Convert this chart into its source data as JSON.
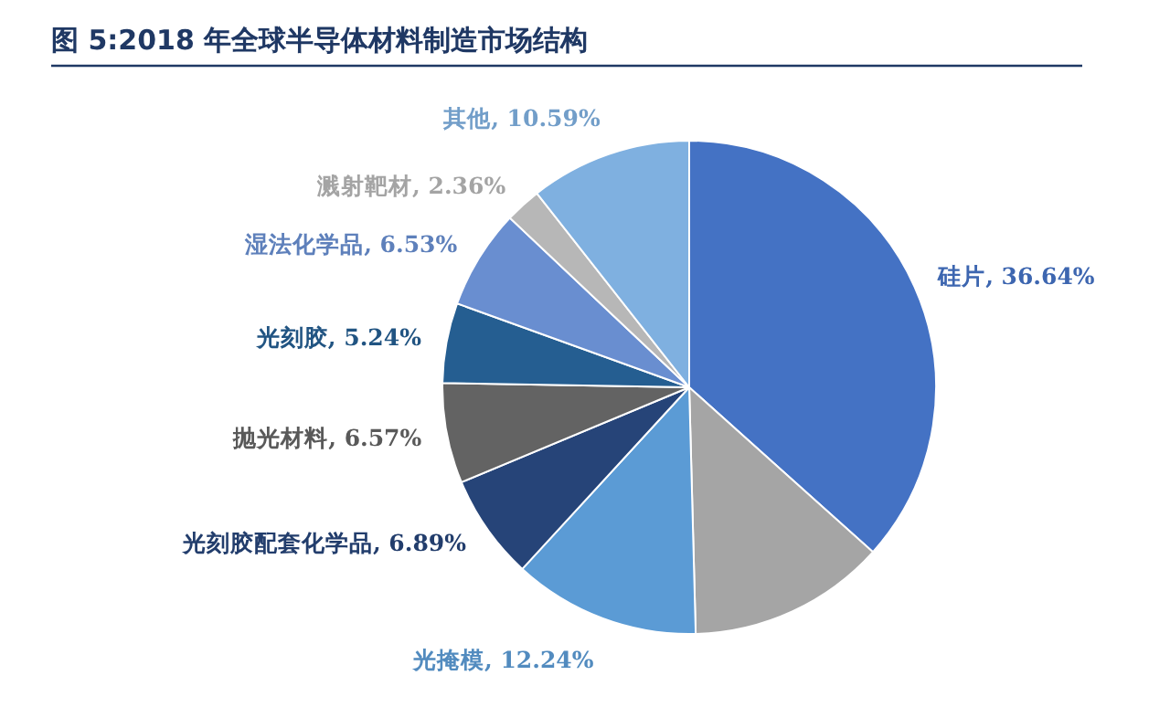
{
  "chart_data": {
    "type": "pie",
    "title": "图 5:2018 年全球半导体材料制造市场结构",
    "categories": [
      "硅片",
      null,
      "光掩模",
      "光刻胶配套化学品",
      "抛光材料",
      "光刻胶",
      "湿法化学品",
      "溅射靶材",
      "其他"
    ],
    "values": [
      36.64,
      12.94,
      12.24,
      6.89,
      6.57,
      5.24,
      6.53,
      2.36,
      10.59
    ],
    "value_labels": [
      "36.64%",
      null,
      "12.24%",
      "6.89%",
      "6.57%",
      "5.24%",
      "6.53%",
      "2.36%",
      "10.59%"
    ],
    "colors": [
      "#4472c4",
      "#a5a5a5",
      "#5b9bd5",
      "#264478",
      "#636363",
      "#255e91",
      "#698ed0",
      "#b7b7b7",
      "#7fb0e0"
    ]
  }
}
